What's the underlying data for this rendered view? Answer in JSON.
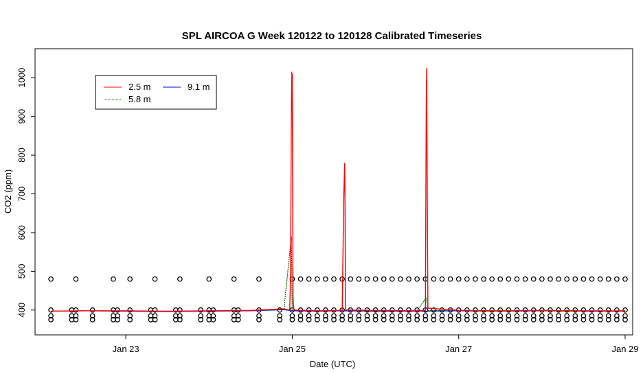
{
  "chart_data": {
    "type": "line",
    "title": "SPL AIRCOA G  Week 120122 to 120128  Calibrated Timeseries",
    "xlabel": "Date (UTC)",
    "ylabel": "CO2 (ppm)",
    "xlim": [
      22.0,
      29.0
    ],
    "ylim": [
      350,
      1050
    ],
    "x_ticks": [
      {
        "value": 23,
        "label": "Jan 23"
      },
      {
        "value": 25,
        "label": "Jan 25"
      },
      {
        "value": 27,
        "label": "Jan 27"
      },
      {
        "value": 29,
        "label": "Jan 29"
      }
    ],
    "y_ticks": [
      {
        "value": 400,
        "label": "400"
      },
      {
        "value": 500,
        "label": "500"
      },
      {
        "value": 600,
        "label": "600"
      },
      {
        "value": 700,
        "label": "700"
      },
      {
        "value": 800,
        "label": "800"
      },
      {
        "value": 900,
        "label": "900"
      },
      {
        "value": 1000,
        "label": "1000"
      }
    ],
    "legend_position": "top-left",
    "series": [
      {
        "name": "2.5 m",
        "color": "#ff0000",
        "points": [
          [
            22.1,
            397
          ],
          [
            22.5,
            398
          ],
          [
            23.0,
            398
          ],
          [
            23.5,
            397
          ],
          [
            24.0,
            398
          ],
          [
            24.5,
            399
          ],
          [
            24.9,
            403
          ],
          [
            24.97,
            400
          ],
          [
            24.98,
            500
          ],
          [
            24.985,
            720
          ],
          [
            24.99,
            930
          ],
          [
            24.995,
            1012
          ],
          [
            25.0,
            1010
          ],
          [
            25.005,
            700
          ],
          [
            25.01,
            430
          ],
          [
            25.02,
            400
          ],
          [
            25.3,
            398
          ],
          [
            25.6,
            399
          ],
          [
            25.62,
            705
          ],
          [
            25.63,
            780
          ],
          [
            25.635,
            645
          ],
          [
            25.64,
            400
          ],
          [
            26.0,
            399
          ],
          [
            26.5,
            398
          ],
          [
            26.6,
            399
          ],
          [
            26.61,
            935
          ],
          [
            26.615,
            1025
          ],
          [
            26.62,
            800
          ],
          [
            26.63,
            405
          ],
          [
            27.0,
            399
          ],
          [
            27.5,
            398
          ],
          [
            28.0,
            399
          ],
          [
            28.5,
            398
          ],
          [
            29.0,
            398
          ]
        ]
      },
      {
        "name": "9.1 m",
        "color": "#0000ff",
        "points": [
          [
            22.1,
            397
          ],
          [
            22.5,
            398
          ],
          [
            23.0,
            397
          ],
          [
            23.5,
            396
          ],
          [
            24.0,
            397
          ],
          [
            24.5,
            398
          ],
          [
            24.9,
            401
          ],
          [
            25.0,
            398
          ],
          [
            25.3,
            397
          ],
          [
            25.6,
            398
          ],
          [
            26.0,
            397
          ],
          [
            26.5,
            397
          ],
          [
            27.0,
            398
          ],
          [
            27.5,
            397
          ],
          [
            28.0,
            398
          ],
          [
            28.5,
            397
          ],
          [
            29.0,
            397
          ]
        ]
      },
      {
        "name": "5.8 m",
        "color": "#006400",
        "points": [
          [
            22.1,
            397
          ],
          [
            22.5,
            398
          ],
          [
            23.0,
            398
          ],
          [
            23.5,
            397
          ],
          [
            24.0,
            398
          ],
          [
            24.5,
            398
          ],
          [
            24.9,
            402
          ],
          [
            24.99,
            590
          ],
          [
            25.0,
            400
          ],
          [
            25.3,
            398
          ],
          [
            25.6,
            399
          ],
          [
            26.0,
            398
          ],
          [
            26.5,
            398
          ],
          [
            26.61,
            432
          ],
          [
            26.63,
            399
          ],
          [
            27.0,
            398
          ],
          [
            27.5,
            397
          ],
          [
            28.0,
            398
          ],
          [
            28.5,
            397
          ],
          [
            29.0,
            397
          ]
        ]
      }
    ],
    "reference_points": {
      "levels": [
        480,
        400,
        385,
        375
      ],
      "x": [
        22.1,
        22.35,
        22.4,
        22.6,
        22.85,
        22.9,
        23.05,
        23.3,
        23.35,
        23.6,
        23.65,
        23.9,
        24.0,
        24.05,
        24.3,
        24.35,
        24.6,
        24.85,
        25.0,
        25.1,
        25.2,
        25.3,
        25.4,
        25.5,
        25.6,
        25.7,
        25.8,
        25.9,
        26.0,
        26.1,
        26.2,
        26.3,
        26.4,
        26.5,
        26.6,
        26.7,
        26.8,
        26.9,
        27.0,
        27.1,
        27.2,
        27.3,
        27.4,
        27.5,
        27.6,
        27.7,
        27.8,
        27.9,
        28.0,
        28.1,
        28.2,
        28.3,
        28.4,
        28.5,
        28.6,
        28.7,
        28.8,
        28.9,
        29.0
      ]
    }
  }
}
